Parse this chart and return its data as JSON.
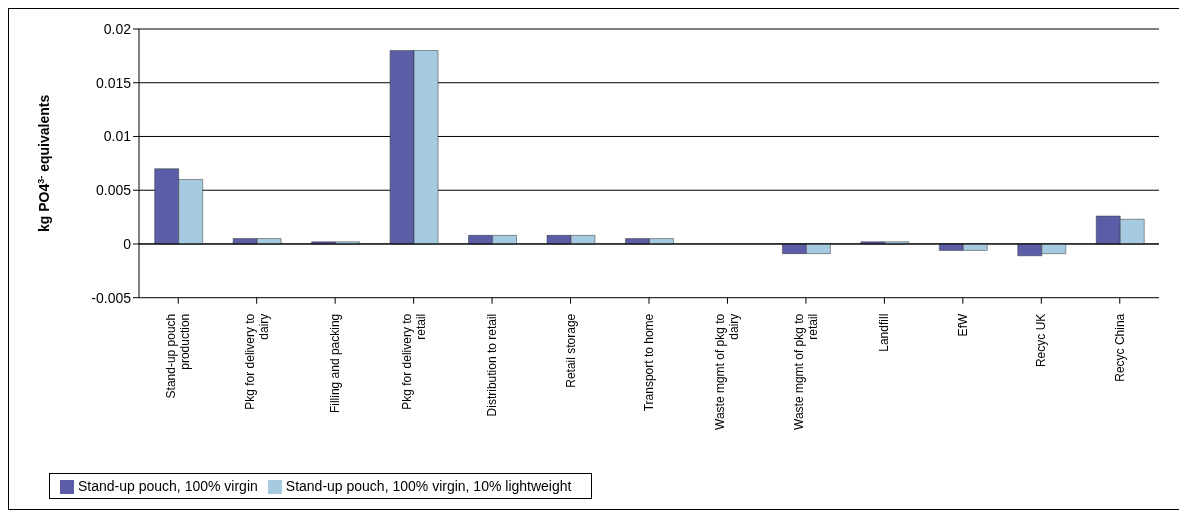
{
  "chart_data": {
    "type": "bar",
    "ylabel": "kg PO4$^{3-}$ equivalents",
    "categories": [
      "Stand-up pouch production",
      "Pkg for delivery to dairy",
      "Filling and packing",
      "Pkg for delivery to retail",
      "Distribution to retail",
      "Retail storage",
      "Transport to home",
      "Waste mgmt of  pkg to dairy",
      "Waste mgmt of  pkg to retail",
      "Landfill",
      "EfW",
      "Recyc UK",
      "Recyc China"
    ],
    "series": [
      {
        "name": "Stand-up pouch, 100% virgin",
        "color": "#5b5ea6",
        "values": [
          0.007,
          0.0005,
          0.0002,
          0.018,
          0.0008,
          0.0008,
          0.0005,
          0,
          -0.0009,
          0.0002,
          -0.0006,
          -0.0011,
          0.0026
        ]
      },
      {
        "name": "Stand-up pouch, 100% virgin, 10% lightweight",
        "color": "#a6cae0",
        "values": [
          0.006,
          0.0005,
          0.0002,
          0.018,
          0.0008,
          0.0008,
          0.0005,
          0,
          -0.0009,
          0.0002,
          -0.0006,
          -0.0009,
          0.0023
        ]
      }
    ],
    "ylim": [
      -0.005,
      0.02
    ],
    "yticks": [
      -0.005,
      0,
      0.005,
      0.01,
      0.015,
      0.02
    ],
    "grid": "y",
    "legend": "bottom left"
  }
}
